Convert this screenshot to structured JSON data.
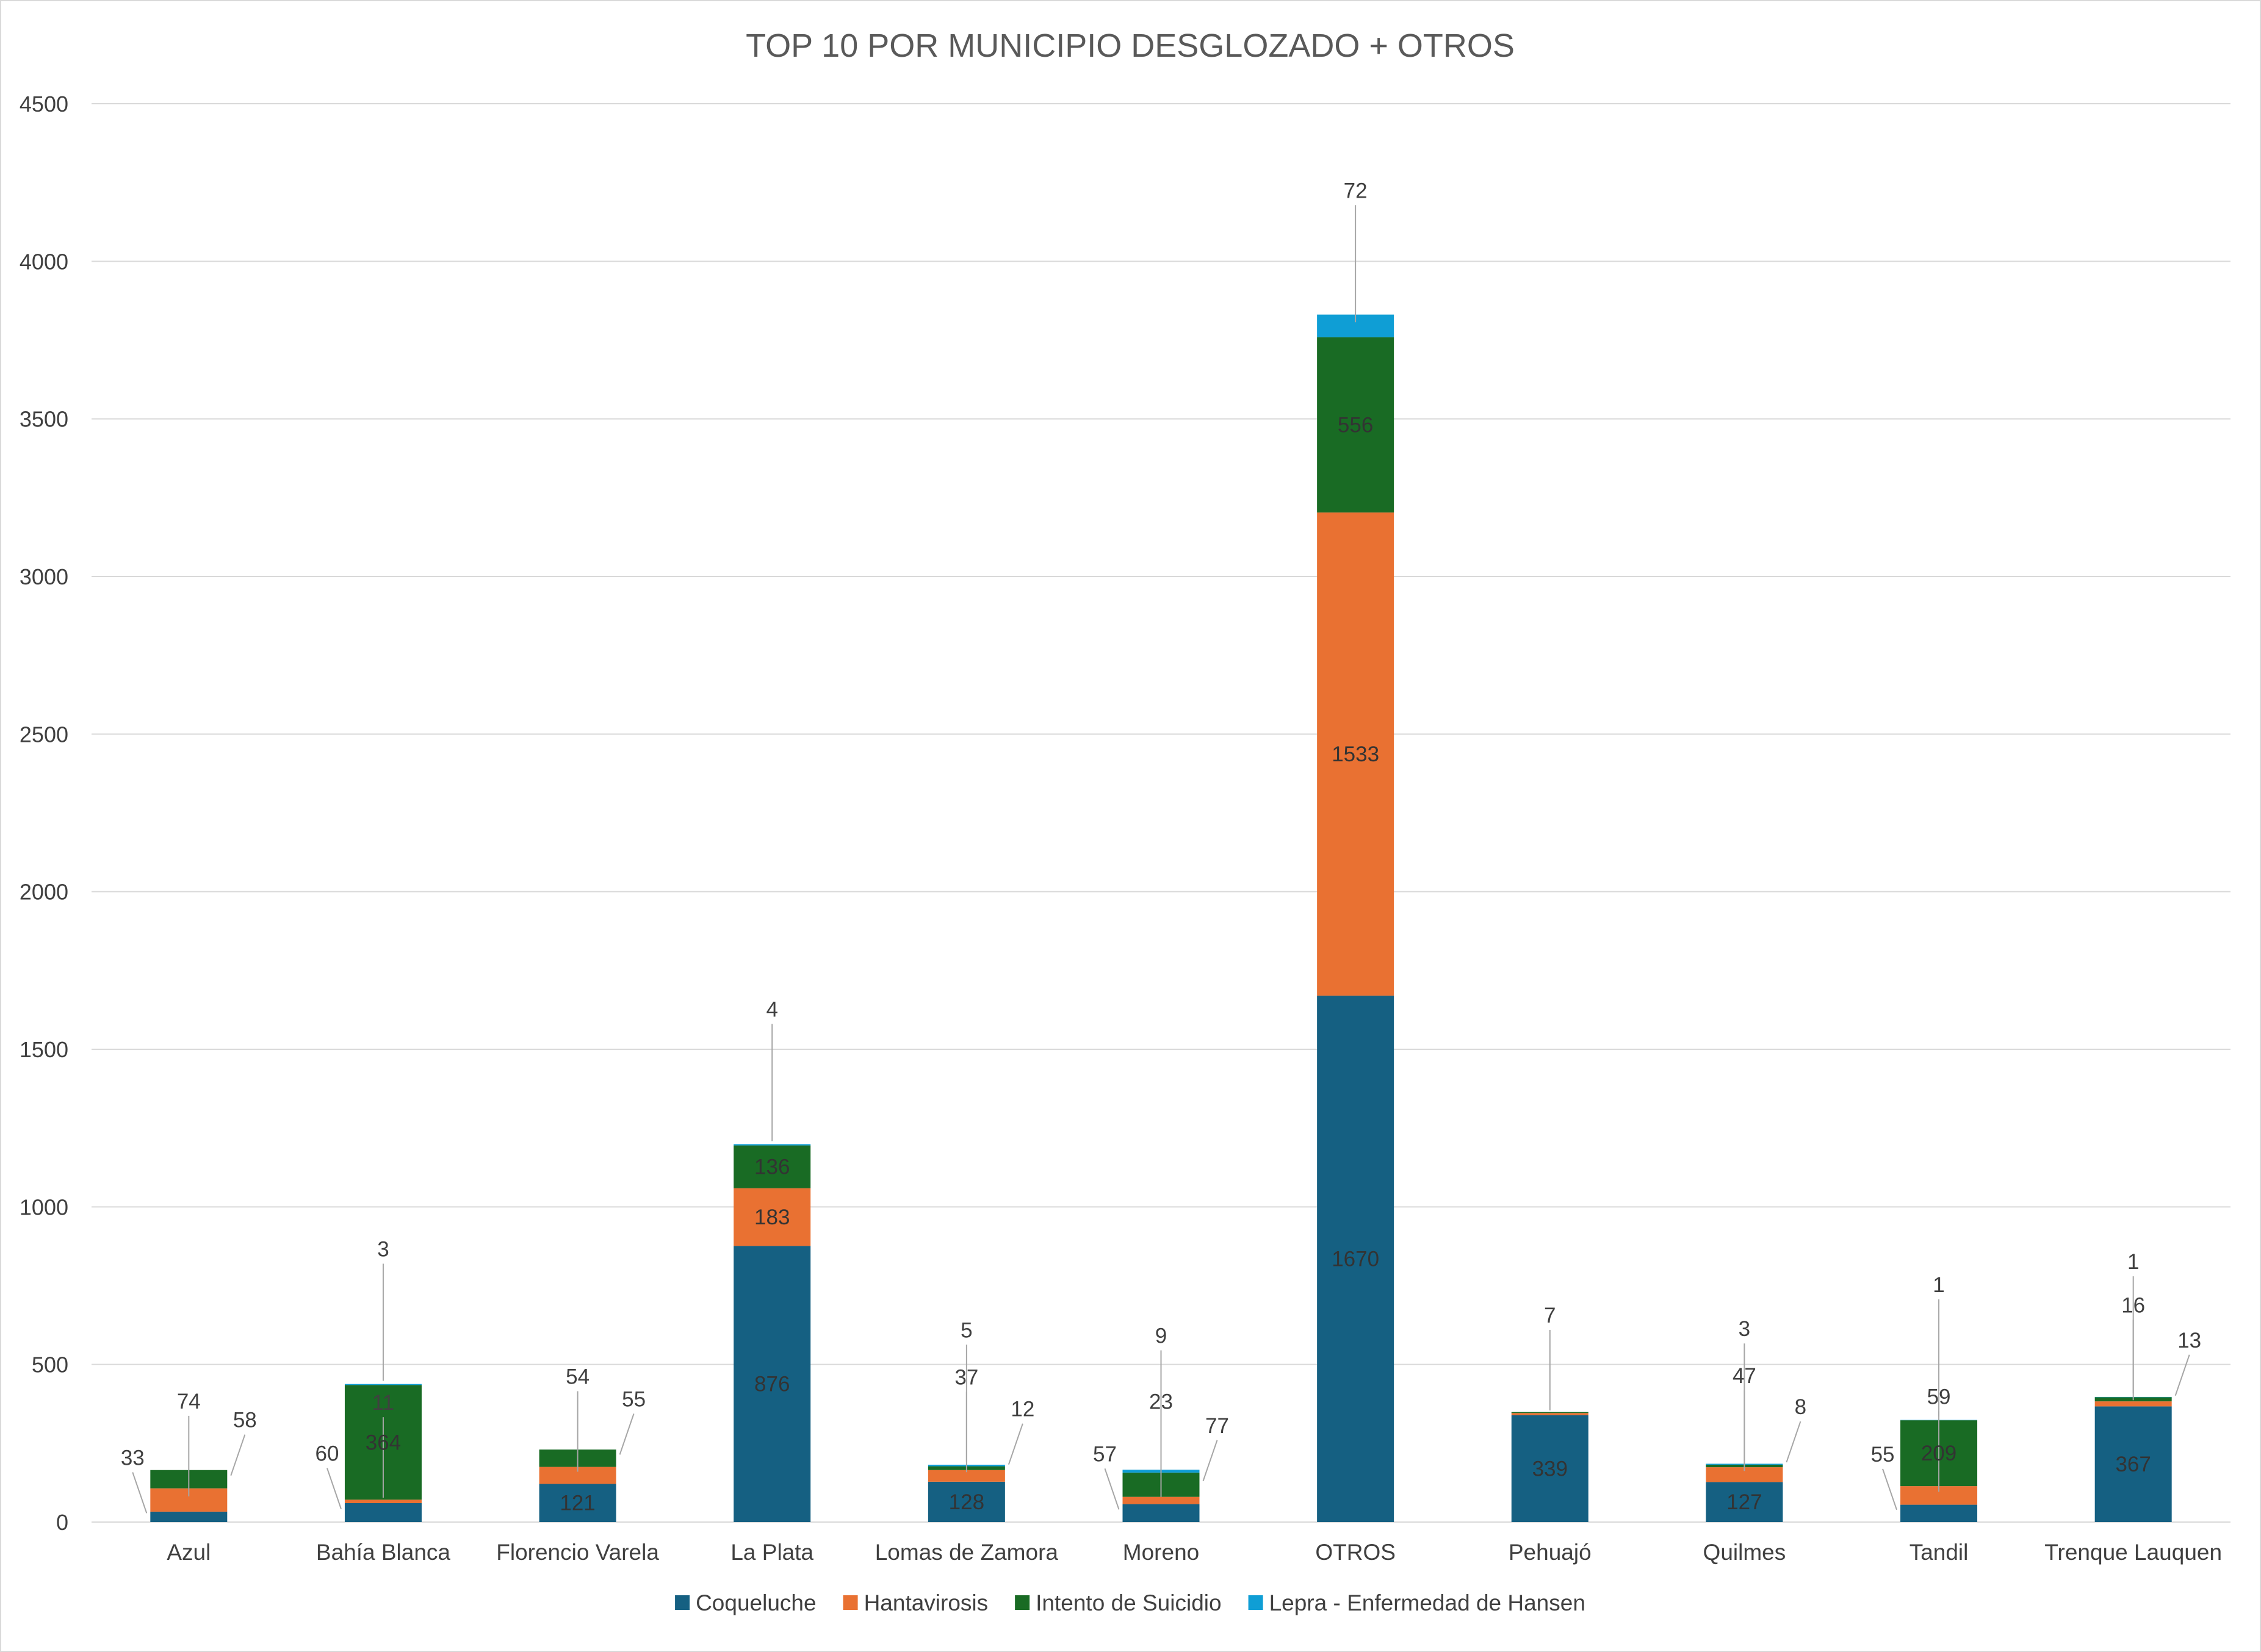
{
  "chart_data": {
    "type": "bar",
    "stacked": true,
    "title": "TOP 10 POR MUNICIPIO DESGLOZADO + OTROS",
    "xlabel": "",
    "ylabel": "",
    "ylim": [
      0,
      4500
    ],
    "yticks": [
      0,
      500,
      1000,
      1500,
      2000,
      2500,
      3000,
      3500,
      4000,
      4500
    ],
    "grid": true,
    "legend_position": "bottom",
    "categories": [
      "Azul",
      "Bahía Blanca",
      "Florencio Varela",
      "La Plata",
      "Lomas de Zamora",
      "Moreno",
      "OTROS",
      "Pehuajó",
      "Quilmes",
      "Tandil",
      "Trenque Lauquen"
    ],
    "series": [
      {
        "name": "Coqueluche",
        "color": "#156082",
        "values": [
          33,
          60,
          121,
          876,
          128,
          57,
          1670,
          339,
          127,
          55,
          367
        ],
        "labels": [
          "33",
          "60",
          "121",
          "876",
          "128",
          "57",
          "1670",
          "339",
          "127",
          "55",
          "367"
        ]
      },
      {
        "name": "Hantavirosis",
        "color": "#E97132",
        "values": [
          74,
          11,
          54,
          183,
          37,
          23,
          1533,
          7,
          47,
          59,
          16
        ],
        "labels": [
          "74",
          "11",
          "54",
          "183",
          "37",
          "23",
          "1533",
          "7",
          "47",
          "59",
          "16"
        ]
      },
      {
        "name": "Intento de Suicidio",
        "color": "#196B24",
        "values": [
          58,
          364,
          55,
          136,
          12,
          77,
          556,
          3,
          8,
          209,
          13
        ],
        "labels": [
          "58",
          "364",
          "55",
          "136",
          "12",
          "77",
          "556",
          "",
          "8",
          "209",
          "13"
        ]
      },
      {
        "name": "Lepra - Enfermedad de Hansen",
        "color": "#0F9ED5",
        "values": [
          0,
          3,
          0,
          4,
          5,
          9,
          72,
          0,
          3,
          1,
          1
        ],
        "labels": [
          "",
          "3",
          "",
          "4",
          "5",
          "9",
          "72",
          "",
          "3",
          "1",
          "1"
        ]
      }
    ]
  }
}
